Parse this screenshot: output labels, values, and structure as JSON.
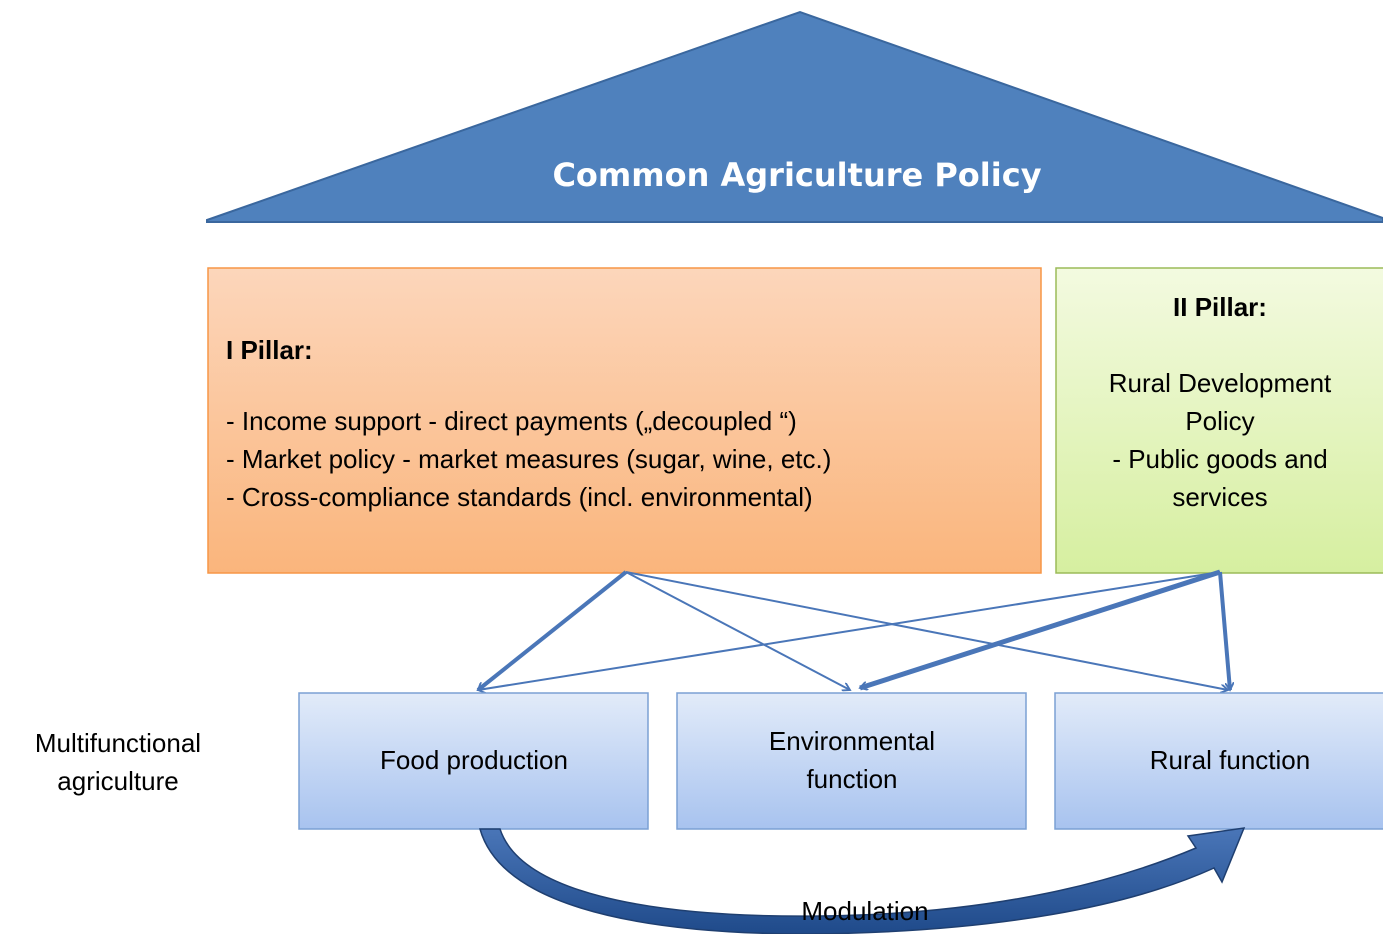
{
  "title": "Common Agriculture Policy",
  "pillar_1": {
    "heading": "I Pillar:",
    "items": [
      "-  Income support - direct payments („decoupled “)",
      "-  Market policy - market measures (sugar, wine, etc.)",
      "-  Cross-compliance standards (incl. environmental)"
    ]
  },
  "pillar_2": {
    "heading": "II Pillar:",
    "lines": [
      "Rural Development",
      "Policy",
      "- Public goods and",
      "services"
    ]
  },
  "side_label": {
    "lines": [
      "Multifunctional",
      "agriculture"
    ]
  },
  "functions": [
    {
      "lines": [
        "Food production"
      ]
    },
    {
      "lines": [
        "Environmental",
        "function"
      ]
    },
    {
      "lines": [
        "Rural function"
      ]
    }
  ],
  "modulation": "Modulation"
}
